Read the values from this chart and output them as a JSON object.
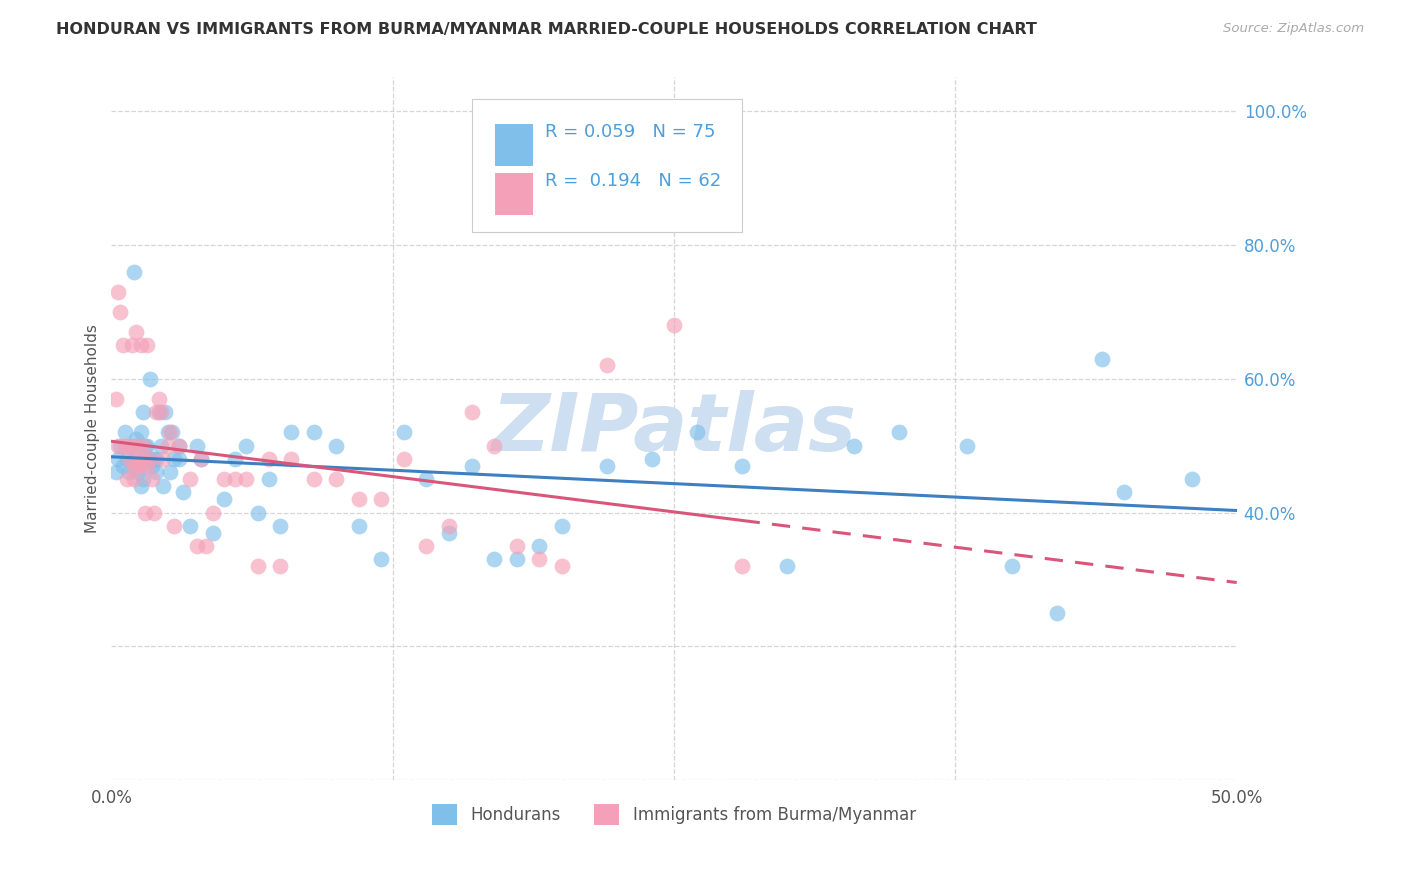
{
  "title": "HONDURAN VS IMMIGRANTS FROM BURMA/MYANMAR MARRIED-COUPLE HOUSEHOLDS CORRELATION CHART",
  "source": "Source: ZipAtlas.com",
  "ylabel": "Married-couple Households",
  "background_color": "#ffffff",
  "grid_color": "#cccccc",
  "title_color": "#333333",
  "blue_scatter_color": "#7fbfea",
  "pink_scatter_color": "#f4a0b8",
  "blue_line_color": "#3d7fc1",
  "pink_line_color": "#d9567a",
  "watermark_color": "#cddff0",
  "tick_color": "#4d9fdc",
  "legend_label1": "Hondurans",
  "legend_label2": "Immigrants from Burma/Myanmar",
  "R1": "0.059",
  "N1": "75",
  "R2": "0.194",
  "N2": "62",
  "blue_x": [
    0.2,
    0.3,
    0.4,
    0.5,
    0.6,
    0.7,
    0.8,
    0.9,
    1.0,
    1.0,
    1.1,
    1.1,
    1.2,
    1.2,
    1.3,
    1.3,
    1.4,
    1.4,
    1.5,
    1.5,
    1.6,
    1.6,
    1.7,
    1.7,
    1.8,
    1.9,
    2.0,
    2.0,
    2.1,
    2.2,
    2.3,
    2.4,
    2.5,
    2.6,
    2.7,
    2.8,
    3.0,
    3.0,
    3.2,
    3.5,
    3.8,
    4.0,
    4.5,
    5.0,
    5.5,
    6.0,
    6.5,
    7.0,
    7.5,
    8.0,
    9.0,
    10.0,
    11.0,
    12.0,
    13.0,
    14.0,
    15.0,
    16.0,
    17.0,
    18.0,
    19.0,
    20.0,
    22.0,
    24.0,
    26.0,
    28.0,
    30.0,
    33.0,
    35.0,
    38.0,
    40.0,
    42.0,
    44.0,
    45.0,
    48.0
  ],
  "blue_y": [
    46,
    48,
    50,
    47,
    52,
    48,
    46,
    50,
    76,
    48,
    47,
    51,
    46,
    50,
    52,
    44,
    55,
    45,
    50,
    48,
    50,
    48,
    48,
    60,
    47,
    48,
    48,
    46,
    55,
    50,
    44,
    55,
    52,
    46,
    52,
    48,
    50,
    48,
    43,
    38,
    50,
    48,
    37,
    42,
    48,
    50,
    40,
    45,
    38,
    52,
    52,
    50,
    38,
    33,
    52,
    45,
    37,
    47,
    33,
    33,
    35,
    38,
    47,
    48,
    52,
    47,
    32,
    50,
    52,
    50,
    32,
    25,
    63,
    43,
    45
  ],
  "pink_x": [
    0.2,
    0.3,
    0.3,
    0.4,
    0.5,
    0.6,
    0.7,
    0.7,
    0.8,
    0.9,
    1.0,
    1.0,
    1.0,
    1.1,
    1.1,
    1.2,
    1.2,
    1.3,
    1.3,
    1.4,
    1.4,
    1.5,
    1.6,
    1.6,
    1.7,
    1.8,
    1.9,
    2.0,
    2.1,
    2.2,
    2.3,
    2.5,
    2.6,
    2.8,
    3.0,
    3.5,
    3.8,
    4.0,
    4.2,
    4.5,
    5.0,
    5.5,
    6.0,
    6.5,
    7.0,
    7.5,
    8.0,
    9.0,
    10.0,
    11.0,
    12.0,
    13.0,
    14.0,
    15.0,
    16.0,
    17.0,
    18.0,
    19.0,
    20.0,
    22.0,
    25.0,
    28.0
  ],
  "pink_y": [
    57,
    73,
    50,
    70,
    65,
    50,
    45,
    50,
    48,
    65,
    47,
    50,
    45,
    47,
    67,
    50,
    48,
    47,
    65,
    50,
    48,
    40,
    47,
    65,
    48,
    45,
    40,
    55,
    57,
    55,
    48,
    50,
    52,
    38,
    50,
    45,
    35,
    48,
    35,
    40,
    45,
    45,
    45,
    32,
    48,
    32,
    48,
    45,
    45,
    42,
    42,
    48,
    35,
    38,
    55,
    50,
    35,
    33,
    32,
    62,
    68,
    32
  ]
}
